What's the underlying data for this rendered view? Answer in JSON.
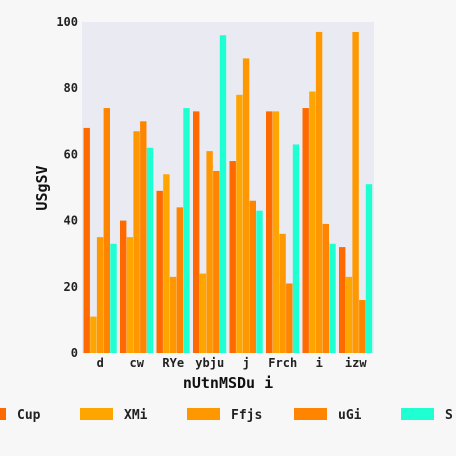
{
  "chart_data": {
    "type": "bar",
    "categories": [
      "d",
      "cw",
      "RYe",
      "ybju",
      "j",
      "Frch",
      "i",
      "izw"
    ],
    "series": [
      {
        "name": "Cup",
        "color": "#ff6a00",
        "values": [
          68,
          40,
          49,
          73,
          58,
          73,
          74,
          32
        ]
      },
      {
        "name": "XMi",
        "color": "#ffa500",
        "values": [
          11,
          35,
          54,
          24,
          78,
          73,
          79,
          23
        ]
      },
      {
        "name": "Ffjs",
        "color": "#ff9800",
        "values": [
          35,
          67,
          23,
          61,
          89,
          36,
          97,
          97
        ]
      },
      {
        "name": "uGi",
        "color": "#ff8500",
        "values": [
          74,
          70,
          44,
          55,
          46,
          21,
          39,
          16
        ]
      },
      {
        "name": "S",
        "color": "#1effd2",
        "values": [
          33,
          62,
          74,
          96,
          43,
          63,
          33,
          51
        ]
      }
    ],
    "xlabel": "nUtnMSDu i",
    "ylabel": "USgSV",
    "ylim": [
      0,
      100
    ],
    "yticks": [
      0,
      20,
      40,
      60,
      80,
      100
    ],
    "grid": false,
    "legend": "bottom"
  }
}
